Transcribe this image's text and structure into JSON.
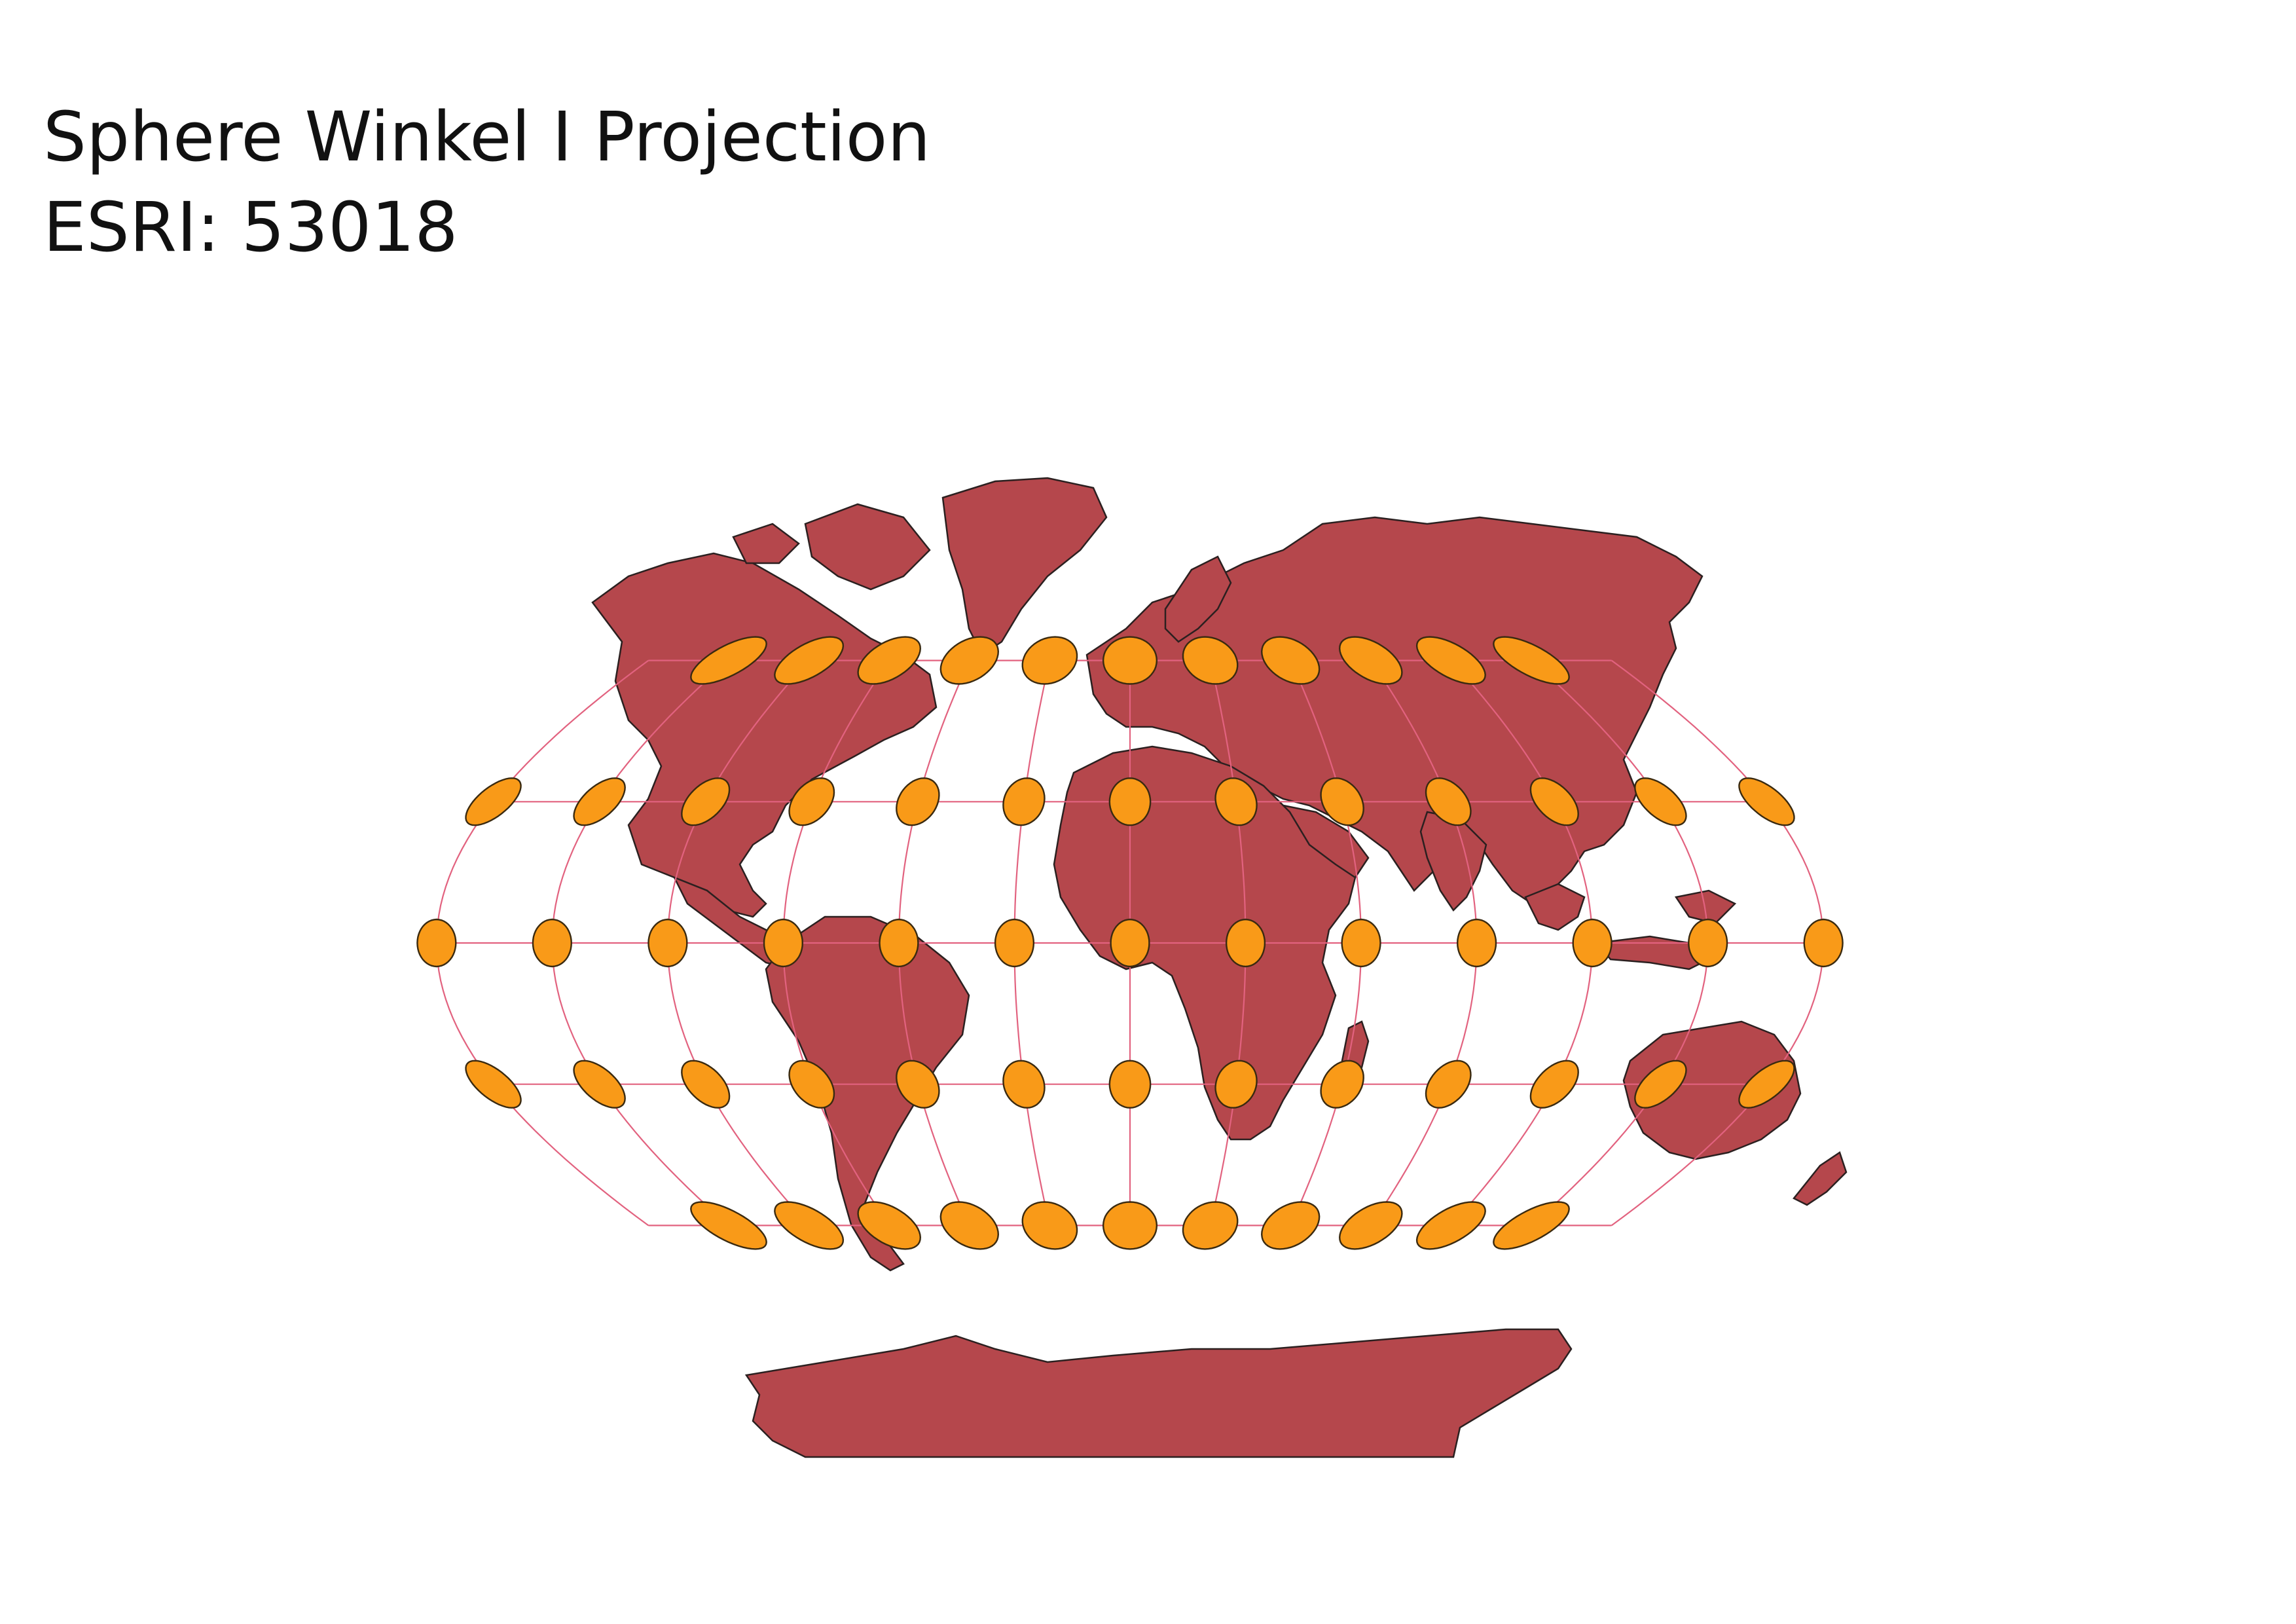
{
  "title": {
    "line1": "Sphere Winkel I Projection",
    "line2": "ESRI: 53018"
  },
  "map": {
    "projection": "Winkel I",
    "land_color": "#b5474c",
    "land_stroke": "#2b2020",
    "graticule_color": "#e2627f",
    "tissot_fill": "#f99a18",
    "tissot_stroke": "#3a2a10",
    "graticule_latitudes": [
      -60,
      -30,
      0,
      30,
      60
    ],
    "graticule_longitudes": [
      -150,
      -120,
      -90,
      -60,
      -30,
      0,
      30,
      60,
      90,
      120,
      150
    ],
    "tissot_latitudes": [
      -60,
      -30,
      0,
      30,
      60
    ]
  }
}
